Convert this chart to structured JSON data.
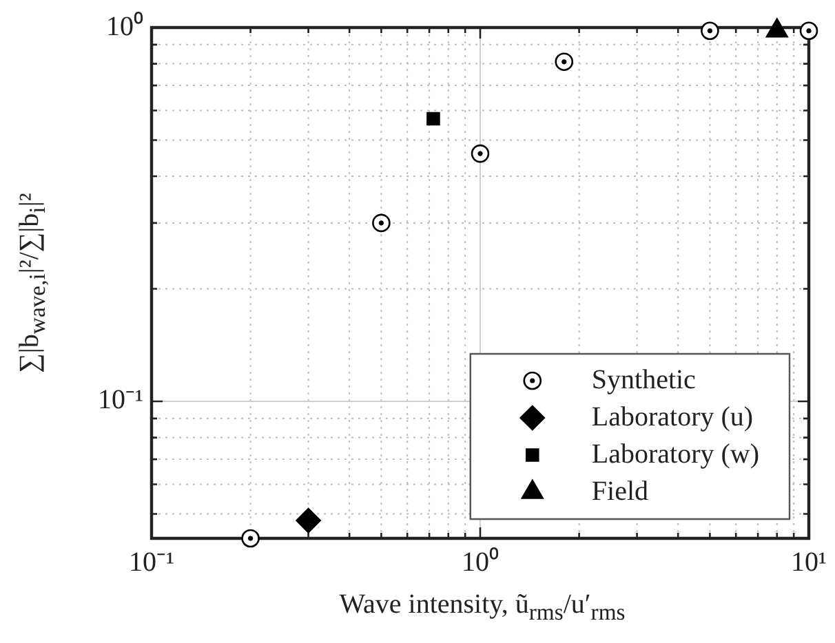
{
  "chart_data": {
    "type": "scatter",
    "xlabel": "Wave intensity, ũ$_{rms}$/u′$_{rms}$",
    "ylabel": "∑|b$_{wave,i}$|²/∑|b$_{i}$|²",
    "log": "xy",
    "xlim": [
      0.1,
      10
    ],
    "ylim": [
      0.043,
      1
    ],
    "xticks": [
      {
        "value": 0.1,
        "label": "10⁻¹"
      },
      {
        "value": 0.2,
        "label": null
      },
      {
        "value": 0.3,
        "label": null
      },
      {
        "value": 0.4,
        "label": null
      },
      {
        "value": 0.5,
        "label": null
      },
      {
        "value": 0.6,
        "label": null
      },
      {
        "value": 0.7,
        "label": null
      },
      {
        "value": 0.8,
        "label": null
      },
      {
        "value": 0.9,
        "label": null
      },
      {
        "value": 1,
        "label": "10⁰"
      },
      {
        "value": 2,
        "label": null
      },
      {
        "value": 3,
        "label": null
      },
      {
        "value": 4,
        "label": null
      },
      {
        "value": 5,
        "label": null
      },
      {
        "value": 6,
        "label": null
      },
      {
        "value": 7,
        "label": null
      },
      {
        "value": 8,
        "label": null
      },
      {
        "value": 9,
        "label": null
      },
      {
        "value": 10,
        "label": "10¹"
      }
    ],
    "yticks": [
      {
        "value": 0.05,
        "label": null
      },
      {
        "value": 0.06,
        "label": null
      },
      {
        "value": 0.07,
        "label": null
      },
      {
        "value": 0.08,
        "label": null
      },
      {
        "value": 0.09,
        "label": null
      },
      {
        "value": 0.1,
        "label": "10⁻¹"
      },
      {
        "value": 0.2,
        "label": null
      },
      {
        "value": 0.3,
        "label": null
      },
      {
        "value": 0.4,
        "label": null
      },
      {
        "value": 0.5,
        "label": null
      },
      {
        "value": 0.6,
        "label": null
      },
      {
        "value": 0.7,
        "label": null
      },
      {
        "value": 0.8,
        "label": null
      },
      {
        "value": 0.9,
        "label": null
      },
      {
        "value": 1,
        "label": "10⁰"
      }
    ],
    "grid": true,
    "legend": "bottom right",
    "series": [
      {
        "name": "Synthetic",
        "color": "#000000",
        "marker": "circle",
        "x": [
          0.2,
          0.5,
          1,
          1.8,
          5,
          10
        ],
        "values": [
          0.043,
          0.3,
          0.46,
          0.81,
          0.98,
          0.98
        ]
      },
      {
        "name": "Laboratory (u)",
        "color": "#000000",
        "marker": "diamond",
        "x": [
          0.3
        ],
        "values": [
          0.048
        ]
      },
      {
        "name": "Laboratory (w)",
        "color": "#000000",
        "marker": "square",
        "x": [
          0.72
        ],
        "values": [
          0.57
        ]
      },
      {
        "name": "Field",
        "color": "#000000",
        "marker": "triangle",
        "x": [
          8
        ],
        "values": [
          0.98
        ]
      }
    ]
  }
}
